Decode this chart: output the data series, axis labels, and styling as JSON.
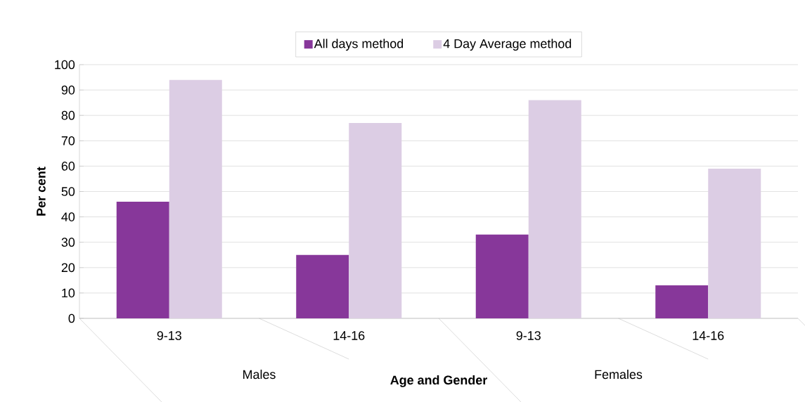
{
  "chart_data": {
    "type": "bar",
    "categories": [
      "9-13",
      "14-16",
      "9-13",
      "14-16"
    ],
    "annotations": [
      "Males",
      "Females"
    ],
    "xlabel": "Age and Gender",
    "ylabel": "Per cent",
    "series": [
      {
        "name": "All days method",
        "color": "#87379a",
        "values": [
          46,
          25,
          33,
          13
        ]
      },
      {
        "name": "4 Day Average method",
        "color": "#dccde4",
        "values": [
          94,
          77,
          86,
          59
        ]
      }
    ],
    "ylim": [
      0,
      100
    ],
    "yticks": [
      0,
      10,
      20,
      30,
      40,
      50,
      60,
      70,
      80,
      90,
      100
    ],
    "grid": "y",
    "legend": "top"
  }
}
